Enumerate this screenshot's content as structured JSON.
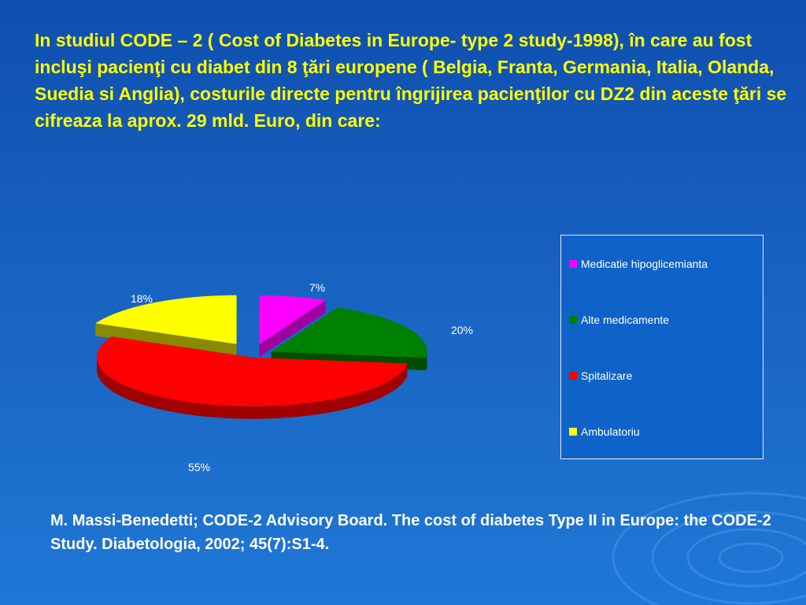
{
  "slide": {
    "heading": "In studiul CODE – 2 ( Cost of Diabetes in Europe- type 2 study-1998), în care au fost incluşi  pacienţi cu diabet din 8 ţări europene (  Belgia, Franta, Germania, Italia, Olanda, Suedia si Anglia), costurile directe pentru îngrijirea pacienţilor cu DZ2 din aceste ţări se cifreaza la aprox. 29 mld. Euro, din care:",
    "citation": "M. Massi-Benedetti; CODE-2 Advisory Board. The cost of diabetes Type II in Europe: the CODE-2 Study. Diabetologia, 2002; 45(7):S1-4."
  },
  "chart_data": {
    "type": "pie",
    "style": "3d-exploded",
    "legend_position": "right",
    "slices": [
      {
        "label": "Medicatie hipoglicemianta",
        "value": 7,
        "value_label": "7%",
        "color": "#ff00ff",
        "side_color": "#a000a0"
      },
      {
        "label": "Alte medicamente",
        "value": 20,
        "value_label": "20%",
        "color": "#008000",
        "side_color": "#004d00"
      },
      {
        "label": "Spitalizare",
        "value": 55,
        "value_label": "55%",
        "color": "#ff0000",
        "side_color": "#a00000"
      },
      {
        "label": "Ambulatoriu",
        "value": 18,
        "value_label": "18%",
        "color": "#ffff00",
        "side_color": "#8a8a00"
      }
    ]
  }
}
